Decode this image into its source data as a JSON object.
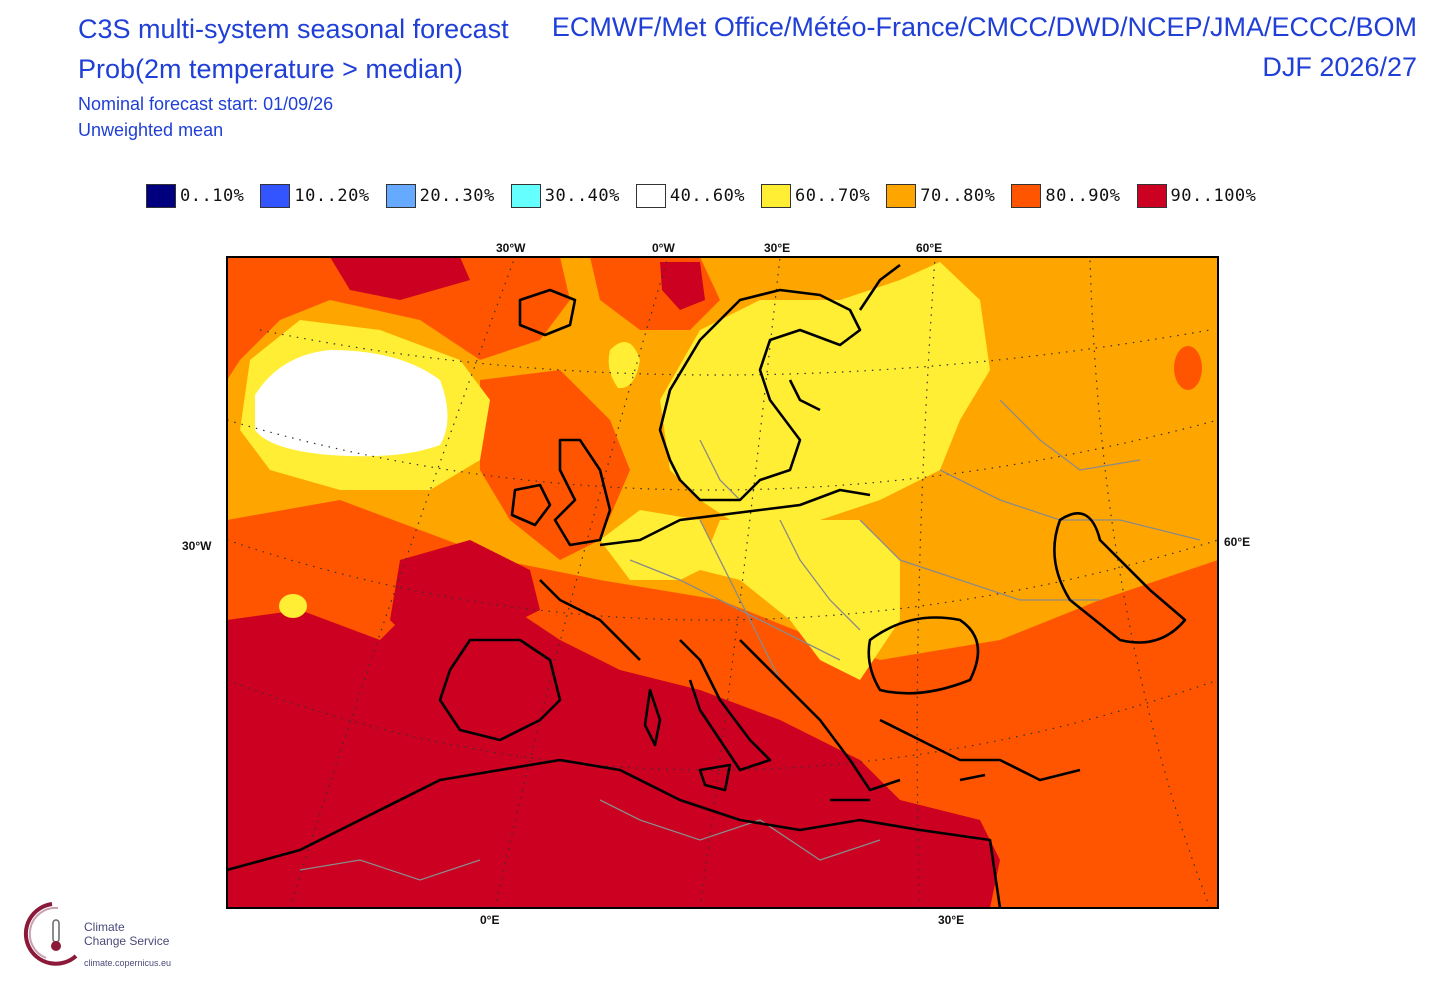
{
  "header": {
    "title_line1": "C3S multi-system seasonal forecast",
    "title_line2": "Prob(2m temperature > median)",
    "sub_line1": "Nominal forecast start: 01/09/26",
    "sub_line2": "Unweighted mean",
    "centres": "ECMWF/Met Office/Météo-France/CMCC/DWD/NCEP/JMA/ECCC/BOM",
    "season": "DJF 2026/27"
  },
  "legend": [
    {
      "label": "0..10%",
      "color": "#00007f"
    },
    {
      "label": "10..20%",
      "color": "#3355ff"
    },
    {
      "label": "20..30%",
      "color": "#66aaff"
    },
    {
      "label": "30..40%",
      "color": "#66ffff"
    },
    {
      "label": "40..60%",
      "color": "#ffffff"
    },
    {
      "label": "60..70%",
      "color": "#ffee33"
    },
    {
      "label": "70..80%",
      "color": "#ffa500"
    },
    {
      "label": "80..90%",
      "color": "#ff5500"
    },
    {
      "label": "90..100%",
      "color": "#cc0020"
    }
  ],
  "ticks": {
    "top": [
      "30°W",
      "0°W",
      "30°E",
      "60°E"
    ],
    "left": "30°W",
    "right": "60°E",
    "bottom": [
      "0°E",
      "30°E"
    ]
  },
  "logo": {
    "name_line1": "Climate",
    "name_line2": "Change Service",
    "url": "climate.copernicus.eu",
    "icon": "thermometer-cloud-icon"
  }
}
